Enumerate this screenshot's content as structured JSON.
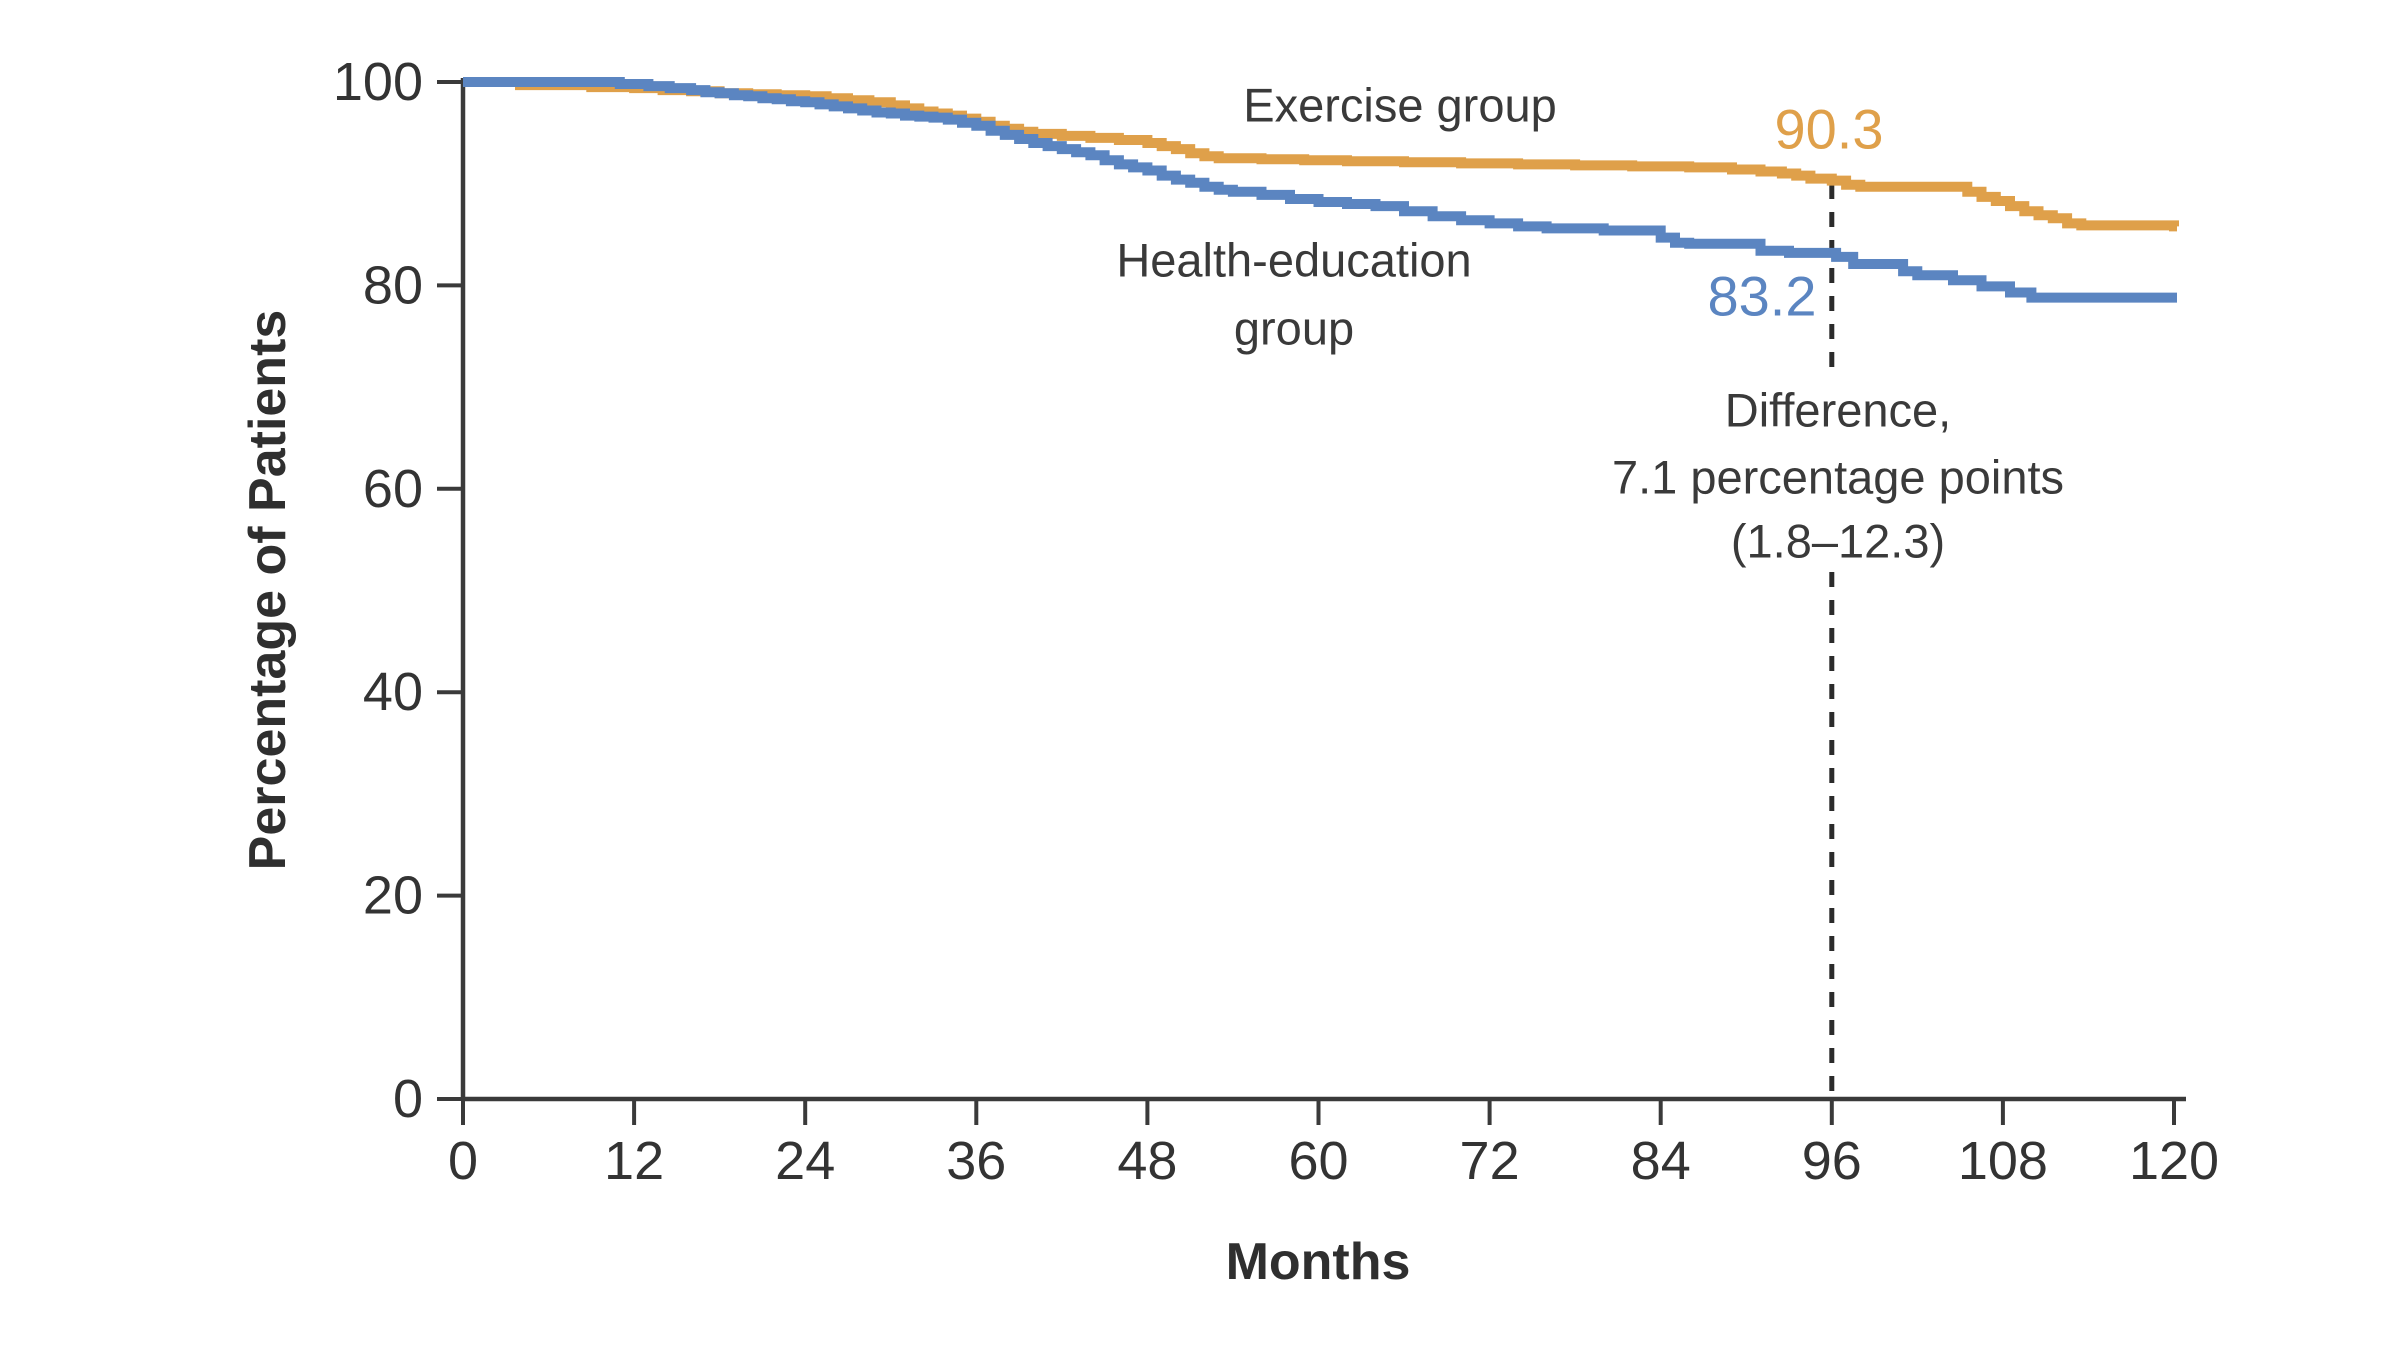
{
  "chart_data": {
    "type": "line",
    "subtype": "kaplan-meier-step",
    "title": "",
    "xlabel": "Months",
    "ylabel": "Percentage of Patients",
    "xlim": [
      0,
      120
    ],
    "ylim": [
      0,
      100
    ],
    "x_ticks": [
      0,
      12,
      24,
      36,
      48,
      60,
      72,
      84,
      96,
      108,
      120
    ],
    "y_ticks": [
      0,
      20,
      40,
      60,
      80,
      100
    ],
    "grid": false,
    "legend_position": "inline-curve-labels",
    "series": [
      {
        "name": "Exercise group",
        "label_lines": [
          "Exercise group"
        ],
        "color": "#DFA04A",
        "end_value_label": "90.3",
        "value_at_month_96": 90.3,
        "points": [
          [
            0,
            100
          ],
          [
            4,
            99.7
          ],
          [
            9,
            99.5
          ],
          [
            12,
            99.4
          ],
          [
            14,
            99.2
          ],
          [
            16,
            99.1
          ],
          [
            18,
            98.9
          ],
          [
            20,
            98.8
          ],
          [
            22,
            98.7
          ],
          [
            24,
            98.6
          ],
          [
            25.5,
            98.4
          ],
          [
            27,
            98.2
          ],
          [
            28.5,
            98.0
          ],
          [
            30,
            97.7
          ],
          [
            31,
            97.4
          ],
          [
            32,
            97.1
          ],
          [
            33,
            96.9
          ],
          [
            34,
            96.7
          ],
          [
            35,
            96.4
          ],
          [
            36,
            96.1
          ],
          [
            37,
            95.7
          ],
          [
            38,
            95.4
          ],
          [
            39,
            95.1
          ],
          [
            40,
            94.9
          ],
          [
            42,
            94.7
          ],
          [
            44,
            94.5
          ],
          [
            46,
            94.3
          ],
          [
            48,
            94.0
          ],
          [
            49,
            93.7
          ],
          [
            50,
            93.4
          ],
          [
            51,
            93.0
          ],
          [
            52,
            92.7
          ],
          [
            53,
            92.5
          ],
          [
            56,
            92.4
          ],
          [
            59,
            92.3
          ],
          [
            62,
            92.2
          ],
          [
            66,
            92.1
          ],
          [
            70,
            92.0
          ],
          [
            74,
            91.9
          ],
          [
            78,
            91.8
          ],
          [
            82,
            91.7
          ],
          [
            86,
            91.6
          ],
          [
            89,
            91.4
          ],
          [
            91,
            91.2
          ],
          [
            92.5,
            91.0
          ],
          [
            93.5,
            90.8
          ],
          [
            94.5,
            90.5
          ],
          [
            96,
            90.3
          ],
          [
            97,
            89.9
          ],
          [
            98,
            89.7
          ],
          [
            105.5,
            89.2
          ],
          [
            106.5,
            88.7
          ],
          [
            107.5,
            88.3
          ],
          [
            108.5,
            87.8
          ],
          [
            109.5,
            87.3
          ],
          [
            110.5,
            86.9
          ],
          [
            111.5,
            86.6
          ],
          [
            112.5,
            86.1
          ],
          [
            113.5,
            85.9
          ],
          [
            120,
            85.8
          ]
        ]
      },
      {
        "name": "Health-education group",
        "label_lines": [
          "Health-education",
          "group"
        ],
        "color": "#5B85C1",
        "end_value_label": "83.2",
        "value_at_month_96": 83.2,
        "points": [
          [
            0,
            100
          ],
          [
            11,
            99.8
          ],
          [
            13,
            99.6
          ],
          [
            14.5,
            99.4
          ],
          [
            16,
            99.2
          ],
          [
            17,
            99.0
          ],
          [
            18,
            98.9
          ],
          [
            19,
            98.7
          ],
          [
            20,
            98.6
          ],
          [
            21,
            98.4
          ],
          [
            22,
            98.3
          ],
          [
            23,
            98.1
          ],
          [
            24,
            98.0
          ],
          [
            25,
            97.8
          ],
          [
            26,
            97.6
          ],
          [
            27,
            97.4
          ],
          [
            28,
            97.2
          ],
          [
            29,
            97.0
          ],
          [
            30,
            96.9
          ],
          [
            31,
            96.7
          ],
          [
            32,
            96.6
          ],
          [
            33,
            96.5
          ],
          [
            34,
            96.3
          ],
          [
            35,
            96.0
          ],
          [
            36,
            95.7
          ],
          [
            37,
            95.2
          ],
          [
            38,
            94.8
          ],
          [
            39,
            94.4
          ],
          [
            40,
            94.0
          ],
          [
            41,
            93.7
          ],
          [
            42,
            93.4
          ],
          [
            43,
            93.1
          ],
          [
            44,
            92.8
          ],
          [
            45,
            92.3
          ],
          [
            46,
            91.9
          ],
          [
            47,
            91.6
          ],
          [
            48,
            91.3
          ],
          [
            49,
            90.8
          ],
          [
            50,
            90.4
          ],
          [
            51,
            90.1
          ],
          [
            52,
            89.7
          ],
          [
            53,
            89.4
          ],
          [
            54,
            89.2
          ],
          [
            56,
            88.9
          ],
          [
            58,
            88.5
          ],
          [
            60,
            88.2
          ],
          [
            62,
            88.0
          ],
          [
            64,
            87.8
          ],
          [
            66,
            87.3
          ],
          [
            68,
            86.8
          ],
          [
            70,
            86.4
          ],
          [
            72,
            86.1
          ],
          [
            74,
            85.8
          ],
          [
            76,
            85.6
          ],
          [
            80,
            85.4
          ],
          [
            84,
            84.7
          ],
          [
            85,
            84.2
          ],
          [
            86,
            84.1
          ],
          [
            91,
            83.4
          ],
          [
            93,
            83.2
          ],
          [
            96.3,
            82.8
          ],
          [
            97.5,
            82.1
          ],
          [
            101,
            81.4
          ],
          [
            102,
            81.0
          ],
          [
            104.5,
            80.5
          ],
          [
            106.5,
            79.9
          ],
          [
            108.5,
            79.3
          ],
          [
            110,
            78.8
          ],
          [
            120,
            78.8
          ]
        ]
      }
    ],
    "annotation": {
      "dashed_line_x": 96,
      "lines": [
        "Difference,",
        "7.1 percentage points",
        "(1.8–12.3)"
      ]
    },
    "colors": {
      "exercise": "#DFA04A",
      "health_education": "#5B85C1",
      "axis": "#3a3a3a",
      "text": "#3a3a3a",
      "dashed_line": "#2b2b2b",
      "background": "#ffffff"
    }
  }
}
